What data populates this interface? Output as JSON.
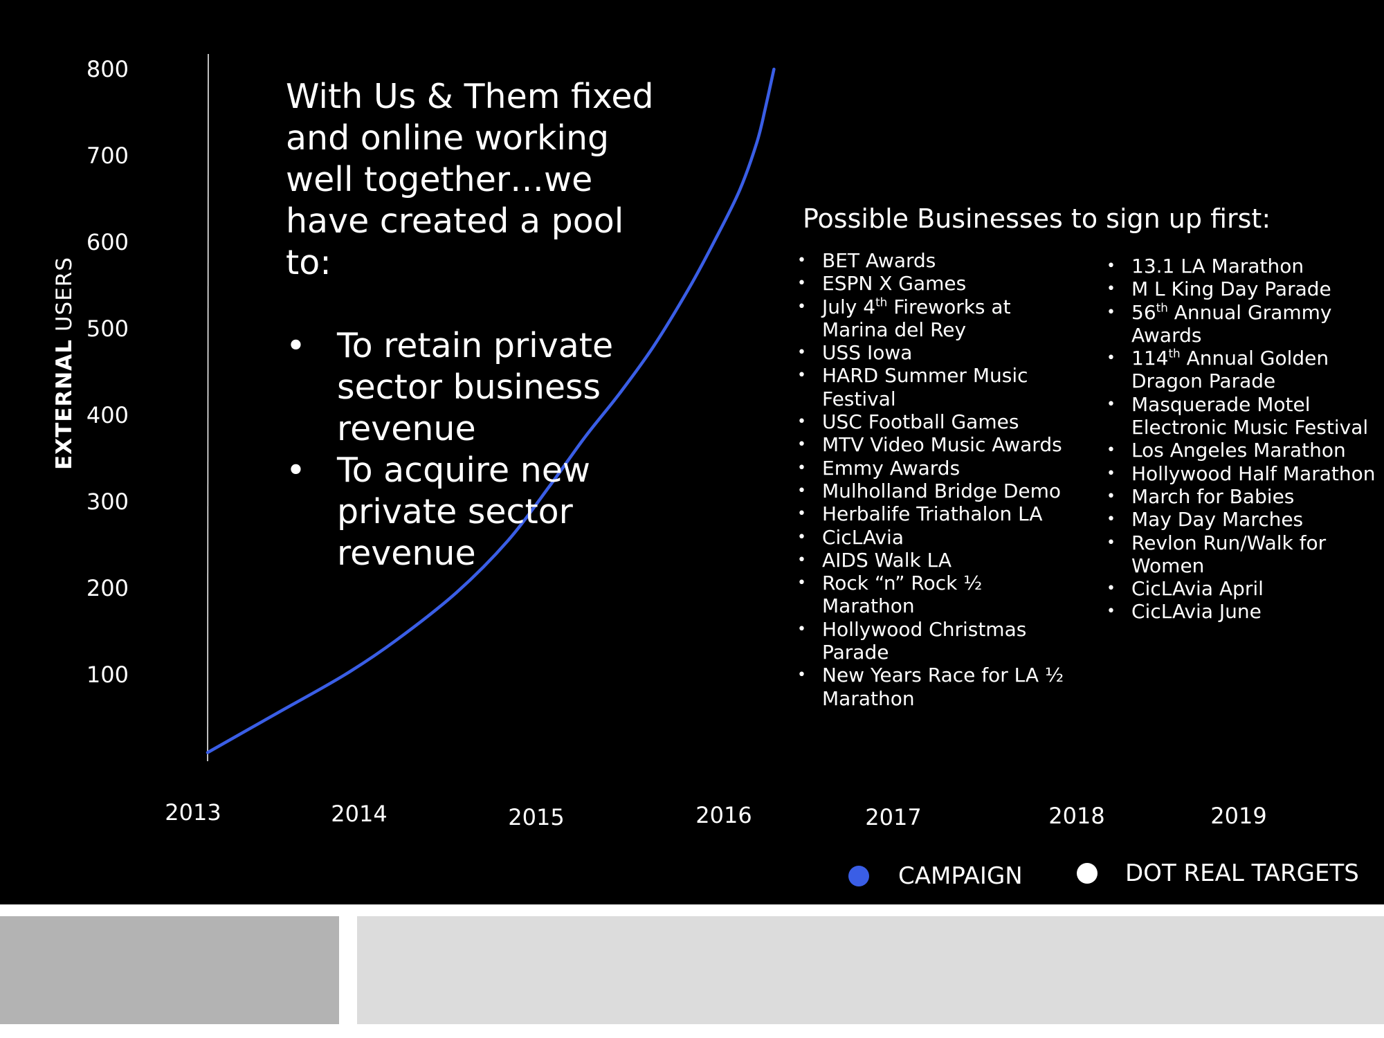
{
  "chart_data": {
    "type": "line",
    "ylabel_bold": "EXTERNAL",
    "ylabel_rest": " USERS",
    "y_ticks": [
      100,
      200,
      300,
      400,
      500,
      600,
      700,
      800
    ],
    "ylim": [
      0,
      800
    ],
    "x_ticks": [
      "2013",
      "2014",
      "2015",
      "2016",
      "2017",
      "2018",
      "2019"
    ],
    "grid": false,
    "legend_position": "bottom-right",
    "series": [
      {
        "name": "CAMPAIGN",
        "color": "#3a5ee6",
        "x": [
          2013.0,
          2013.4,
          2013.8,
          2014.1,
          2014.45,
          2014.75,
          2015.0,
          2015.2,
          2015.4,
          2015.6,
          2015.8,
          2015.95,
          2016.1,
          2016.2,
          2016.25,
          2016.3
        ],
        "y": [
          10,
          55,
          100,
          140,
          195,
          255,
          320,
          375,
          425,
          480,
          545,
          600,
          660,
          715,
          755,
          800
        ]
      }
    ],
    "legend": [
      {
        "label": "CAMPAIGN",
        "color": "#3a5ee6"
      },
      {
        "label": "DOT  REAL TARGETS",
        "color": "#ffffff"
      }
    ]
  },
  "headline": "With Us & Them fixed and online working well together…we have created a pool to:",
  "headline_bullets": [
    "To retain private sector business revenue",
    "To acquire new private sector revenue"
  ],
  "list_title": "Possible Businesses to sign up first:",
  "list_left": [
    "BET Awards",
    "ESPN X Games",
    "July 4th Fireworks at Marina del Rey",
    "USS Iowa",
    "HARD Summer Music Festival",
    "USC Football Games",
    "MTV Video Music Awards",
    "Emmy Awards",
    "Mulholland Bridge Demo",
    "Herbalife Triathalon LA",
    "CicLAvia",
    "AIDS Walk LA",
    "Rock “n” Rock ½ Marathon",
    "Hollywood Christmas Parade",
    "New Years Race for LA ½ Marathon"
  ],
  "list_right": [
    "13.1 LA Marathon",
    "M L King Day Parade",
    "56th Annual Grammy Awards",
    "114th Annual Golden Dragon Parade",
    "Masquerade Motel Electronic Music Festival",
    "Los Angeles Marathon",
    "Hollywood Half Marathon",
    "March for Babies",
    "May Day Marches",
    "Revlon Run/Walk for Women",
    "CicLAvia April",
    "CicLAvia June"
  ]
}
